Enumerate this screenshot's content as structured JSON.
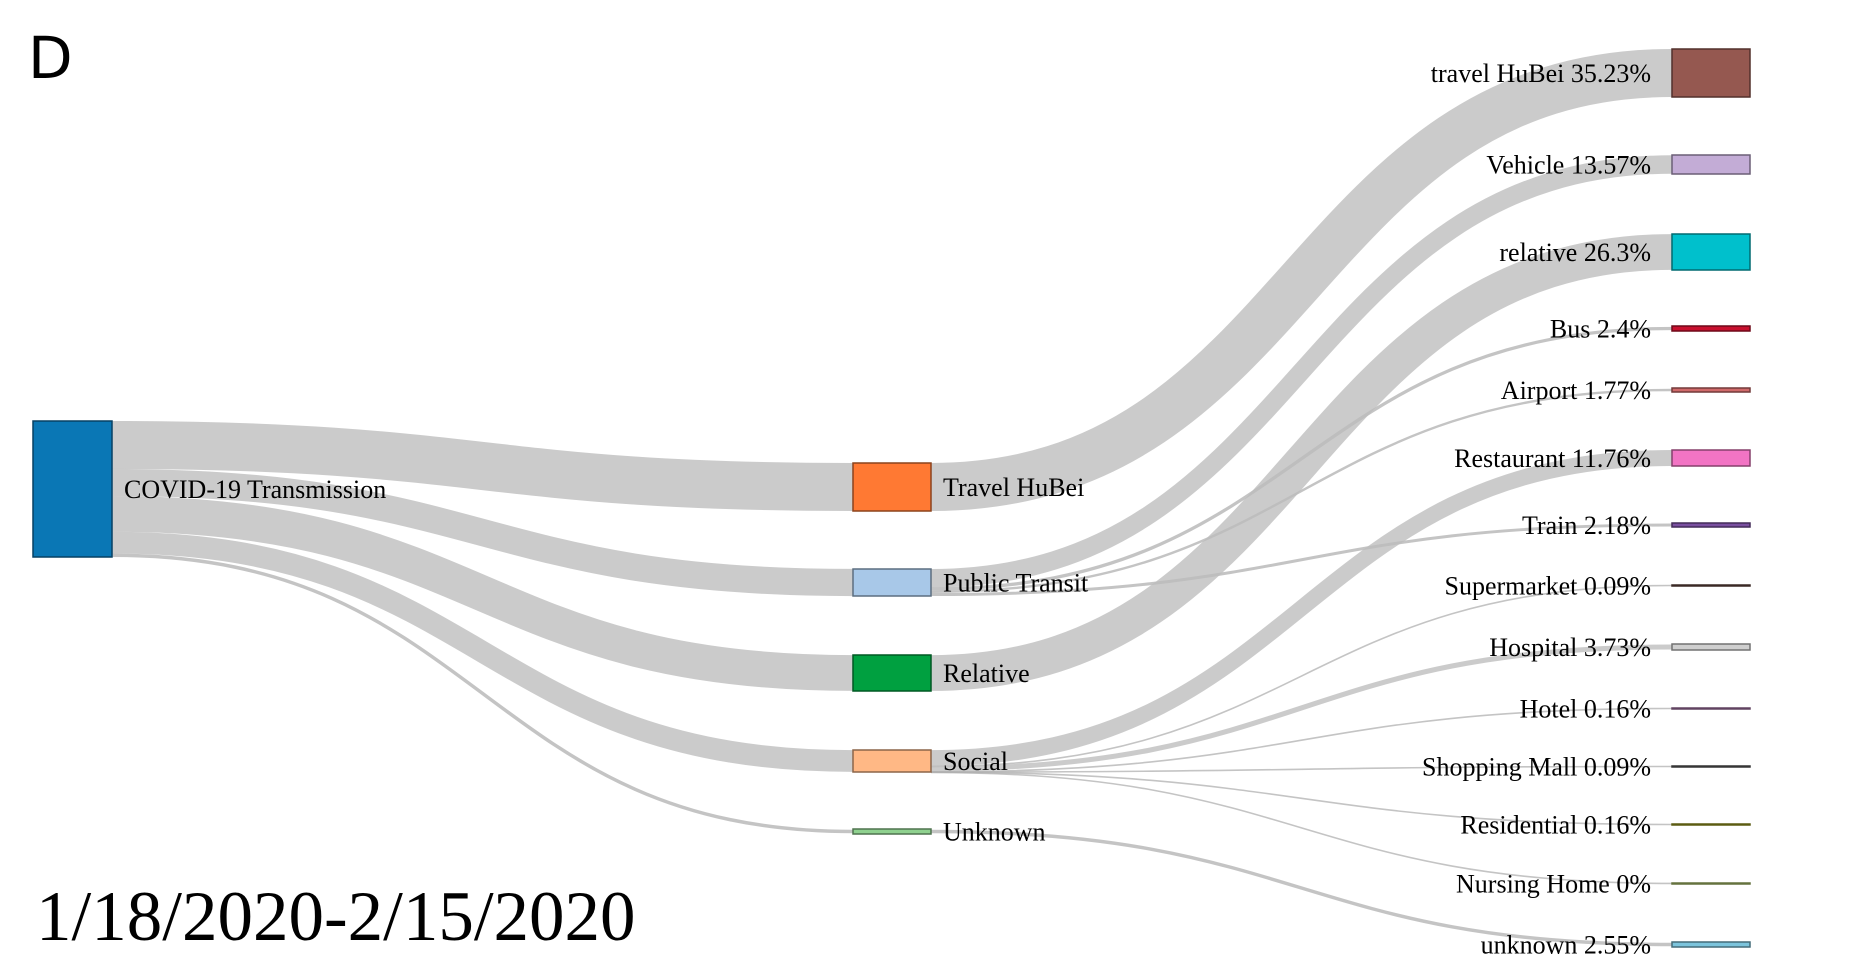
{
  "panel_letter": "D",
  "date_range": "1/18/2020-2/15/2020",
  "chart_data": {
    "type": "sankey",
    "title": "",
    "nodes": [
      {
        "id": "source",
        "label": "COVID-19 Transmission",
        "color": "#0a77b5"
      },
      {
        "id": "travel_hubei",
        "label": "Travel HuBei",
        "color": "#ff7933"
      },
      {
        "id": "public_transit",
        "label": "Public Transit",
        "color": "#a8c8e8"
      },
      {
        "id": "relative",
        "label": "Relative",
        "color": "#00a040"
      },
      {
        "id": "social",
        "label": "Social",
        "color": "#ffb885"
      },
      {
        "id": "unknown",
        "label": "Unknown",
        "color": "#8fd18f"
      },
      {
        "id": "d_travel_hubei",
        "label": "travel HuBei 35.23%",
        "category": "travel HuBei",
        "percent": 35.23,
        "color": "#955850"
      },
      {
        "id": "d_vehicle",
        "label": "Vehicle 13.57%",
        "category": "Vehicle",
        "percent": 13.57,
        "color": "#c3acd6"
      },
      {
        "id": "d_relative",
        "label": "relative 26.3%",
        "category": "relative",
        "percent": 26.3,
        "color": "#00c0cc"
      },
      {
        "id": "d_bus",
        "label": "Bus 2.4%",
        "category": "Bus",
        "percent": 2.4,
        "color": "#c8102e"
      },
      {
        "id": "d_airport",
        "label": "Airport 1.77%",
        "category": "Airport",
        "percent": 1.77,
        "color": "#d06a6a"
      },
      {
        "id": "d_restaurant",
        "label": "Restaurant 11.76%",
        "category": "Restaurant",
        "percent": 11.76,
        "color": "#f274c4"
      },
      {
        "id": "d_train",
        "label": "Train 2.18%",
        "category": "Train",
        "percent": 2.18,
        "color": "#7a4fa0"
      },
      {
        "id": "d_supermarket",
        "label": "Supermarket 0.09%",
        "category": "Supermarket",
        "percent": 0.09,
        "color": "#6a4a44"
      },
      {
        "id": "d_hospital",
        "label": "Hospital 3.73%",
        "category": "Hospital",
        "percent": 3.73,
        "color": "#cfcfcf"
      },
      {
        "id": "d_hotel",
        "label": "Hotel 0.16%",
        "category": "Hotel",
        "percent": 0.16,
        "color": "#b07ab0"
      },
      {
        "id": "d_shopping_mall",
        "label": "Shopping Mall 0.09%",
        "category": "Shopping Mall",
        "percent": 0.09,
        "color": "#606060"
      },
      {
        "id": "d_residential",
        "label": "Residential 0.16%",
        "category": "Residential",
        "percent": 0.16,
        "color": "#a8a820"
      },
      {
        "id": "d_nursing_home",
        "label": "Nursing Home 0%",
        "category": "Nursing Home",
        "percent": 0,
        "color": "#b8d070"
      },
      {
        "id": "d_unknown",
        "label": "unknown 2.55%",
        "category": "unknown",
        "percent": 2.55,
        "color": "#7cc4dc"
      }
    ],
    "links": [
      {
        "source": "source",
        "target": "travel_hubei",
        "value": 35.23
      },
      {
        "source": "source",
        "target": "public_transit",
        "value": 19.92
      },
      {
        "source": "source",
        "target": "relative",
        "value": 26.3
      },
      {
        "source": "source",
        "target": "social",
        "value": 15.99
      },
      {
        "source": "source",
        "target": "unknown",
        "value": 2.55
      },
      {
        "source": "travel_hubei",
        "target": "d_travel_hubei",
        "value": 35.23
      },
      {
        "source": "public_transit",
        "target": "d_vehicle",
        "value": 13.57
      },
      {
        "source": "public_transit",
        "target": "d_bus",
        "value": 2.4
      },
      {
        "source": "public_transit",
        "target": "d_airport",
        "value": 1.77
      },
      {
        "source": "public_transit",
        "target": "d_train",
        "value": 2.18
      },
      {
        "source": "relative",
        "target": "d_relative",
        "value": 26.3
      },
      {
        "source": "social",
        "target": "d_restaurant",
        "value": 11.76
      },
      {
        "source": "social",
        "target": "d_supermarket",
        "value": 0.09
      },
      {
        "source": "social",
        "target": "d_hospital",
        "value": 3.73
      },
      {
        "source": "social",
        "target": "d_hotel",
        "value": 0.16
      },
      {
        "source": "social",
        "target": "d_shopping_mall",
        "value": 0.09
      },
      {
        "source": "social",
        "target": "d_residential",
        "value": 0.16
      },
      {
        "source": "social",
        "target": "d_nursing_home",
        "value": 0
      },
      {
        "source": "unknown",
        "target": "d_unknown",
        "value": 2.55
      }
    ]
  }
}
